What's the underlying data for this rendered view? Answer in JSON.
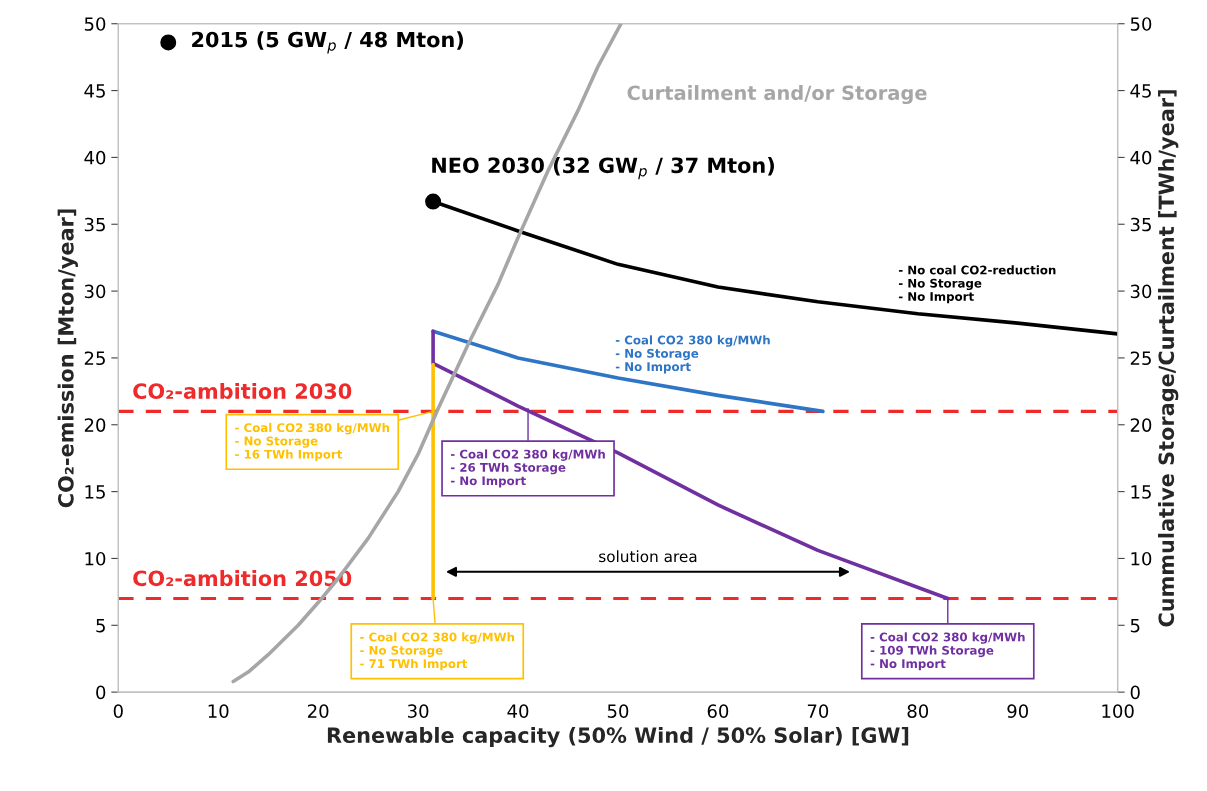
{
  "chart_data": {
    "type": "line",
    "xlabel": "Renewable capacity (50% Wind / 50% Solar) [GW]",
    "ylabel": "CO₂-emission [Mton/year]",
    "y2label": "Cummulative Storage/Curtailment [TWh/year]",
    "xlim": [
      0,
      100
    ],
    "xticks": [
      0,
      10,
      20,
      30,
      40,
      50,
      60,
      70,
      80,
      90,
      100
    ],
    "ylim": [
      0,
      50
    ],
    "yticks": [
      0,
      5,
      10,
      15,
      20,
      25,
      30,
      35,
      40,
      45,
      50
    ],
    "y2lim": [
      0,
      50
    ],
    "y2ticks": [
      0,
      5,
      10,
      15,
      20,
      25,
      30,
      35,
      40,
      45,
      50
    ],
    "grid": false,
    "legend": false,
    "line_style": "solid",
    "series": [
      {
        "color": "#000000",
        "x": [
          31.5,
          40,
          50,
          60,
          70,
          80,
          90,
          100
        ],
        "values": [
          36.7,
          34.5,
          32,
          30.3,
          29.2,
          28.3,
          27.6,
          26.8
        ]
      },
      {
        "color": "#2e75c6",
        "x": [
          31.5,
          40,
          50,
          60,
          70.5
        ],
        "values": [
          27,
          25,
          23.5,
          22.2,
          21
        ]
      },
      {
        "color": "#7030a0",
        "x": [
          31.5,
          31.5,
          40,
          50,
          60,
          70,
          83
        ],
        "values": [
          27,
          24.6,
          21.4,
          17.9,
          14,
          10.6,
          7
        ]
      },
      {
        "color": "#ffc000",
        "x": [
          31.5,
          31.5
        ],
        "values": [
          24.5,
          7
        ]
      },
      {
        "name": "Curtailment and/or Storage",
        "color": "#a6a6a6",
        "axis": "y2",
        "x": [
          11.5,
          13,
          15,
          18,
          20,
          22,
          25,
          28,
          30,
          32,
          35,
          38,
          40,
          43,
          46,
          48,
          50.3
        ],
        "values": [
          0.8,
          1.5,
          2.8,
          5,
          6.7,
          8.5,
          11.5,
          15,
          17.8,
          21.2,
          26,
          30.5,
          34,
          39,
          43.5,
          46.8,
          50
        ]
      },
      {
        "type": "scatter",
        "marker": "circle",
        "color": "#000000",
        "x": [
          5
        ],
        "values": [
          48.6
        ]
      },
      {
        "type": "scatter",
        "marker": "circle",
        "color": "#000000",
        "x": [
          31.5
        ],
        "values": [
          36.7
        ]
      }
    ],
    "ref_lines": [
      {
        "axis": "y",
        "value": 21,
        "label": "CO₂-ambition 2030",
        "color": "#ee2a2a",
        "line_style": "dashed"
      },
      {
        "axis": "y",
        "value": 7,
        "label": "CO₂-ambition 2050",
        "color": "#ee2a2a",
        "line_style": "dashed"
      }
    ],
    "annotations": [
      {
        "text": "2015 (5 GW$_{p}$ / 48 Mton)",
        "x": 5,
        "y": 48.6
      },
      {
        "text": "NEO 2030 (32 GW$_{p}$ / 37 Mton)",
        "x": 31.5,
        "y": 36.7
      },
      {
        "text": "- No coal CO2-reduction\n- No Storage\n- No Import",
        "x": 90,
        "y": 27.6
      },
      {
        "text": "- Coal CO2 380 kg/MWh\n- No Storage\n- No Import",
        "x": 50,
        "y": 23.5
      },
      {
        "text": "- Coal CO2 380 kg/MWh\n- No Storage\n- 16 TWh Import",
        "x": 31.5,
        "y": 21
      },
      {
        "text": "- Coal CO2 380 kg/MWh\n- 26 TWh Storage\n- No Import",
        "x": 41,
        "y": 21.2
      },
      {
        "text": "- Coal CO2 380 kg/MWh\n- No Storage\n- 71 TWh Import",
        "x": 31.5,
        "y": 7
      },
      {
        "text": "- Coal CO2 380 kg/MWh\n- 109 TWh Storage\n- No Import",
        "x": 83,
        "y": 7
      },
      "solution area"
    ]
  }
}
